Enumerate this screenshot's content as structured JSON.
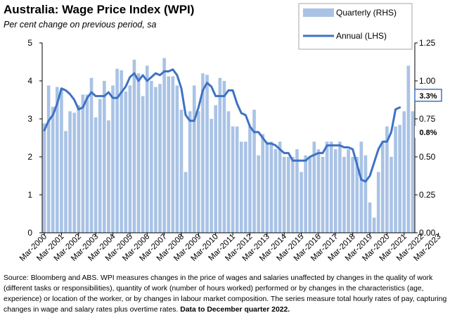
{
  "title": "Australia: Wage Price Index (WPI)",
  "subtitle": "Per cent change on previous period, sa",
  "source": {
    "text": "Source: Bloomberg and ABS.  WPI measures changes in the price of wages and salaries unaffected by changes in the quality of work (different tasks or responsibilities), quantity of work (number of hours worked) performed or by changes in the characteristics (age, experience) or location of the worker, or by changes in labour market composition.  The series measure total hourly rates of pay, capturing changes in wage and salary rates plus overtime rates.",
    "bold": "Data to December quarter  2022."
  },
  "chart_data": {
    "type": "bar+line",
    "x_tick_labels": [
      "Mar-2000",
      "Mar-2001",
      "Mar-2002",
      "Mar-2003",
      "Mar-2004",
      "Mar-2005",
      "Mar-2006",
      "Mar-2007",
      "Mar-2008",
      "Mar-2009",
      "Mar-2010",
      "Mar-2011",
      "Mar-2012",
      "Mar-2013",
      "Mar-2014",
      "Mar-2015",
      "Mar-2016",
      "Mar-2017",
      "Mar-2018",
      "Mar-2019",
      "Mar-2020",
      "Mar-2021",
      "Mar-2022",
      "Mar-2023"
    ],
    "left_axis": {
      "ylim": [
        0,
        5
      ],
      "ticks": [
        "0",
        "1",
        "2",
        "3",
        "4",
        "5"
      ]
    },
    "right_axis": {
      "ylim": [
        0,
        1.25
      ],
      "ticks": [
        "0.00",
        "0.25",
        "0.50",
        "0.75",
        "1.00",
        "1.25"
      ]
    },
    "legend": {
      "position": "top-right",
      "entries": [
        "Quarterly (RHS)",
        "Annual (LHS)"
      ]
    },
    "colors": {
      "bars": "#A9C3E6",
      "line": "#3E72C4",
      "callout_border": "#3E72C4"
    },
    "annotations": {
      "annual_latest": "3.3%",
      "quarterly_latest": "0.8%"
    },
    "series": [
      {
        "name": "Quarterly (RHS)",
        "axis": "right",
        "values": [
          0.72,
          0.97,
          0.83,
          0.96,
          0.95,
          0.67,
          0.8,
          0.79,
          0.84,
          0.91,
          0.91,
          1.02,
          0.76,
          0.88,
          1.0,
          0.74,
          0.97,
          1.08,
          1.07,
          0.93,
          0.97,
          1.14,
          1.05,
          0.9,
          1.1,
          1.0,
          0.96,
          0.98,
          1.15,
          1.03,
          1.03,
          0.97,
          0.81,
          0.4,
          0.8,
          0.97,
          0.8,
          1.05,
          1.04,
          0.75,
          0.84,
          1.02,
          1.0,
          0.8,
          0.7,
          0.7,
          0.6,
          0.6,
          0.7,
          0.81,
          0.51,
          0.65,
          0.6,
          0.6,
          0.55,
          0.6,
          0.5,
          0.5,
          0.5,
          0.55,
          0.4,
          0.51,
          0.5,
          0.6,
          0.55,
          0.5,
          0.6,
          0.6,
          0.55,
          0.6,
          0.5,
          0.55,
          0.5,
          0.5,
          0.6,
          0.51,
          0.2,
          0.1,
          0.4,
          0.6,
          0.7,
          0.5,
          0.7,
          0.71,
          0.8,
          1.1,
          0.8
        ]
      },
      {
        "name": "Annual (LHS)",
        "axis": "left",
        "values": [
          2.7,
          2.95,
          3.1,
          3.4,
          3.8,
          3.75,
          3.65,
          3.5,
          3.25,
          3.3,
          3.55,
          3.7,
          3.6,
          3.6,
          3.6,
          3.7,
          3.55,
          3.55,
          3.7,
          3.85,
          4.1,
          4.2,
          4.0,
          4.15,
          4.0,
          4.1,
          4.2,
          4.15,
          4.25,
          4.25,
          4.3,
          4.15,
          3.8,
          3.1,
          2.95,
          2.95,
          3.3,
          3.75,
          3.95,
          3.85,
          3.6,
          3.6,
          3.6,
          3.75,
          3.75,
          3.4,
          3.15,
          3.1,
          2.8,
          2.65,
          2.65,
          2.5,
          2.35,
          2.35,
          2.3,
          2.2,
          2.1,
          2.1,
          1.9,
          1.9,
          1.9,
          1.9,
          2.0,
          2.05,
          2.1,
          2.1,
          2.3,
          2.3,
          2.3,
          2.3,
          2.25,
          2.25,
          2.2,
          1.8,
          1.4,
          1.35,
          1.5,
          1.85,
          2.2,
          2.4,
          2.4,
          2.65,
          3.25,
          3.3
        ]
      }
    ]
  }
}
